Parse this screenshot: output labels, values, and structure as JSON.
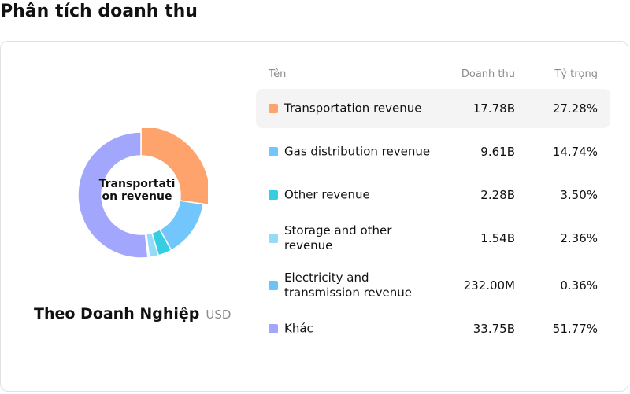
{
  "page_title": "Phân tích doanh thu",
  "chart_data": {
    "type": "pie",
    "variant": "donut",
    "center_label": "Transportation revenue",
    "title": "Theo Doanh Nghiệp",
    "unit": "USD",
    "columns": {
      "name": "Tên",
      "value": "Doanh thu",
      "share": "Tỷ trọng"
    },
    "series": [
      {
        "name": "Transportation revenue",
        "value": "17.78B",
        "share": "27.28%",
        "percent": 27.28,
        "color": "#ffa36c",
        "highlighted": true
      },
      {
        "name": "Gas distribution revenue",
        "value": "9.61B",
        "share": "14.74%",
        "percent": 14.74,
        "color": "#73c6fb",
        "highlighted": false
      },
      {
        "name": "Other revenue",
        "value": "2.28B",
        "share": "3.50%",
        "percent": 3.5,
        "color": "#35cde0",
        "highlighted": false
      },
      {
        "name": "Storage and other revenue",
        "value": "1.54B",
        "share": "2.36%",
        "percent": 2.36,
        "color": "#95dbf8",
        "highlighted": false
      },
      {
        "name": "Electricity and transmission revenue",
        "value": "232.00M",
        "share": "0.36%",
        "percent": 0.36,
        "color": "#6cc4f5",
        "highlighted": false
      },
      {
        "name": "Khác",
        "value": "33.75B",
        "share": "51.77%",
        "percent": 51.77,
        "color": "#a3a6fd",
        "highlighted": false
      }
    ]
  }
}
